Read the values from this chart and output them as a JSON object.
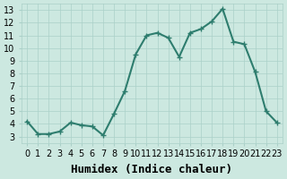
{
  "x": [
    0,
    1,
    2,
    3,
    4,
    5,
    6,
    7,
    8,
    9,
    10,
    11,
    12,
    13,
    14,
    15,
    16,
    17,
    18,
    19,
    20,
    21,
    22,
    23
  ],
  "y": [
    4.2,
    3.2,
    3.2,
    3.4,
    4.1,
    3.9,
    3.8,
    3.1,
    4.8,
    6.6,
    9.5,
    11.0,
    11.2,
    10.8,
    9.3,
    11.2,
    11.5,
    12.1,
    13.1,
    10.5,
    10.3,
    8.1,
    5.0,
    4.1
  ],
  "line_color": "#2e7d6e",
  "marker": "+",
  "marker_color": "#2e7d6e",
  "marker_size": 5,
  "xlabel": "Humidex (Indice chaleur)",
  "ylabel": "",
  "title": "",
  "xlim": [
    -0.5,
    23.5
  ],
  "ylim": [
    2.5,
    13.5
  ],
  "yticks": [
    3,
    4,
    5,
    6,
    7,
    8,
    9,
    10,
    11,
    12,
    13
  ],
  "xticks": [
    0,
    1,
    2,
    3,
    4,
    5,
    6,
    7,
    8,
    9,
    10,
    11,
    12,
    13,
    14,
    15,
    16,
    17,
    18,
    19,
    20,
    21,
    22,
    23
  ],
  "background_color": "#cce8e0",
  "grid_color": "#aad0c8",
  "grid_alpha": 1.0,
  "linewidth": 1.5,
  "xlabel_fontsize": 9,
  "tick_fontsize": 7
}
